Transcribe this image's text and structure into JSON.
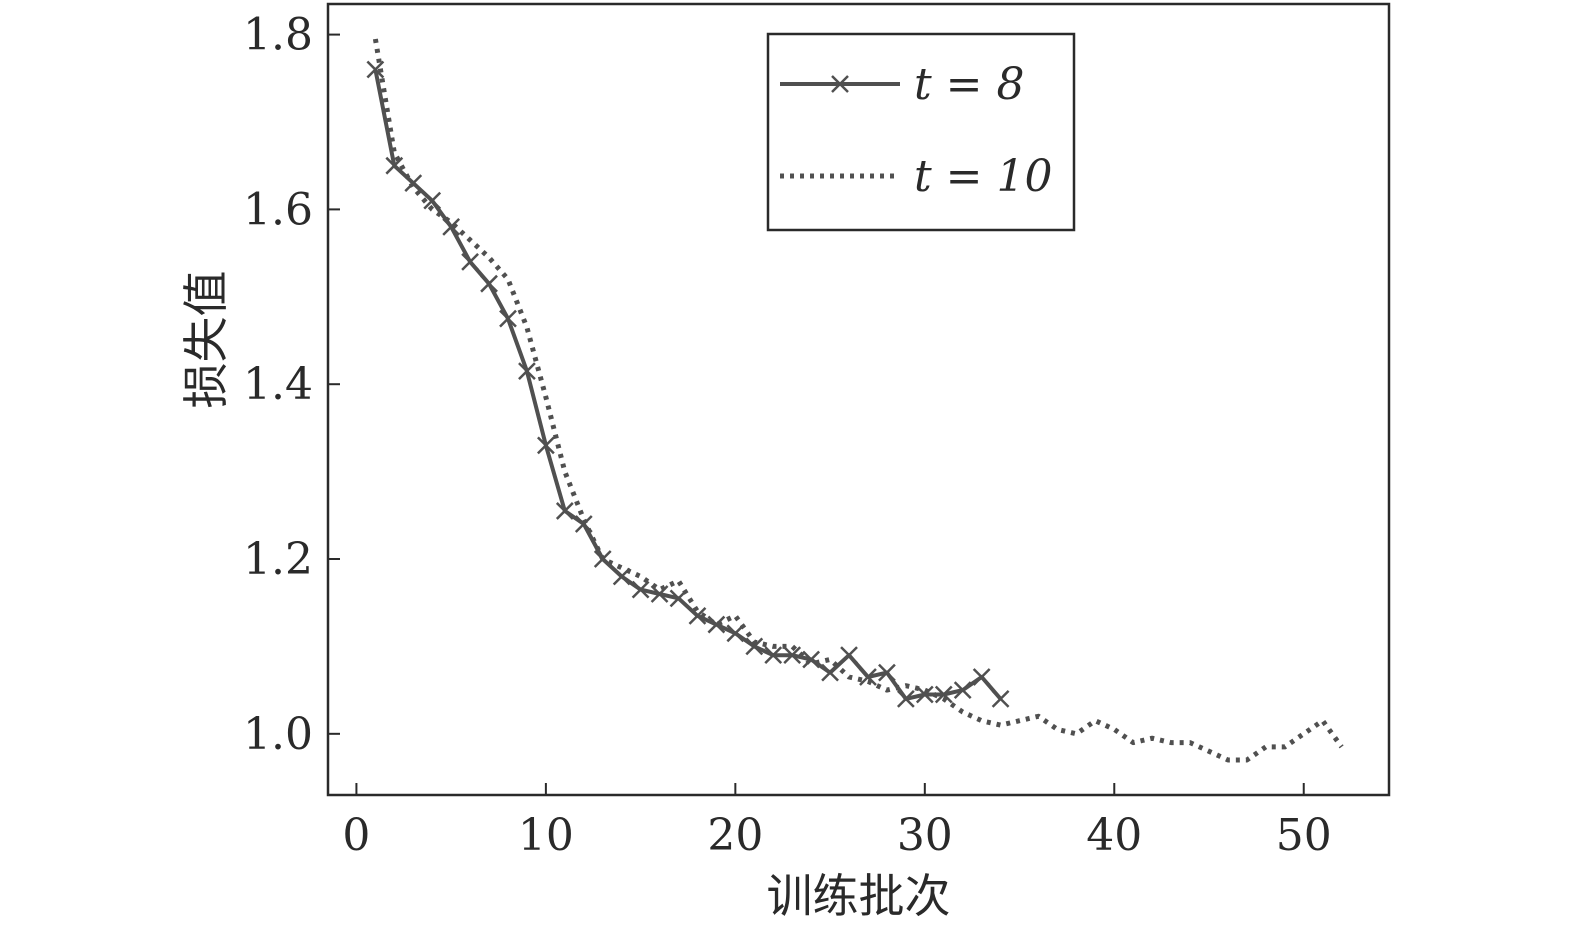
{
  "chart_data": {
    "type": "line",
    "title": "",
    "xlabel": "训练批次",
    "ylabel": "损失值",
    "xlim": [
      -1.5,
      54.5
    ],
    "ylim": [
      0.93,
      1.835
    ],
    "xticks": [
      0,
      10,
      20,
      30,
      40,
      50
    ],
    "yticks": [
      1.0,
      1.2,
      1.4,
      1.6,
      1.8
    ],
    "xtick_labels": [
      "0",
      "10",
      "20",
      "30",
      "40",
      "50"
    ],
    "ytick_labels": [
      "1.0",
      "1.2",
      "1.4",
      "1.6",
      "1.8"
    ],
    "grid": false,
    "legend_position": "top-right",
    "series": [
      {
        "name": "t = 8",
        "style": "solid",
        "marker": "x",
        "color": "#505050",
        "x": [
          1,
          2,
          3,
          4,
          5,
          6,
          7,
          8,
          9,
          10,
          11,
          12,
          13,
          14,
          15,
          16,
          17,
          18,
          19,
          20,
          21,
          22,
          23,
          24,
          25,
          26,
          27,
          28,
          29,
          30,
          31,
          32,
          33,
          34
        ],
        "y": [
          1.76,
          1.65,
          1.63,
          1.61,
          1.58,
          1.54,
          1.515,
          1.475,
          1.415,
          1.33,
          1.255,
          1.24,
          1.2,
          1.18,
          1.165,
          1.16,
          1.155,
          1.135,
          1.125,
          1.115,
          1.1,
          1.09,
          1.09,
          1.085,
          1.07,
          1.09,
          1.065,
          1.07,
          1.04,
          1.045,
          1.045,
          1.05,
          1.065,
          1.04
        ]
      },
      {
        "name": "t = 10",
        "style": "dotted",
        "marker": "none",
        "color": "#505050",
        "x": [
          1,
          2,
          3,
          4,
          5,
          6,
          7,
          8,
          9,
          10,
          11,
          12,
          13,
          14,
          15,
          16,
          17,
          18,
          19,
          20,
          21,
          22,
          23,
          24,
          25,
          26,
          27,
          28,
          29,
          30,
          31,
          32,
          33,
          34,
          35,
          36,
          37,
          38,
          39,
          40,
          41,
          42,
          43,
          44,
          45,
          46,
          47,
          48,
          49,
          50,
          51,
          52
        ],
        "y": [
          1.795,
          1.665,
          1.625,
          1.6,
          1.585,
          1.565,
          1.545,
          1.52,
          1.465,
          1.385,
          1.3,
          1.245,
          1.2,
          1.19,
          1.18,
          1.165,
          1.175,
          1.14,
          1.125,
          1.135,
          1.105,
          1.1,
          1.1,
          1.08,
          1.085,
          1.065,
          1.06,
          1.05,
          1.055,
          1.05,
          1.04,
          1.025,
          1.015,
          1.01,
          1.015,
          1.02,
          1.005,
          1.0,
          1.015,
          1.005,
          0.99,
          0.995,
          0.99,
          0.99,
          0.98,
          0.97,
          0.97,
          0.985,
          0.985,
          1.0,
          1.015,
          0.985
        ]
      }
    ]
  }
}
